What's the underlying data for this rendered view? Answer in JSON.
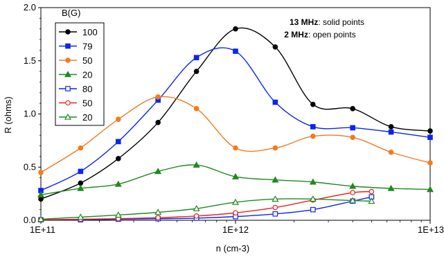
{
  "chart_data": {
    "type": "line",
    "xlabel": "n (cm-3)",
    "ylabel": "R (ohms)",
    "xscale": "log",
    "xlim": [
      100000000000.0,
      10000000000000.0
    ],
    "ylim": [
      0,
      2.0
    ],
    "x_tick_labels": [
      "1E+11",
      "1E+12",
      "1E+13"
    ],
    "y_tick_labels": [
      "0.0",
      "0.5",
      "1.0",
      "1.5",
      "2.0"
    ],
    "y_ticks": [
      0,
      0.5,
      1.0,
      1.5,
      2.0
    ],
    "x_ticks": [
      100000000000.0,
      1000000000000.0,
      10000000000000.0
    ],
    "grid": false,
    "legend": {
      "title": "B(G)",
      "placement": "top-left"
    },
    "annotations": [
      {
        "bold": "13 MHz",
        "rest": ":  solid points"
      },
      {
        "bold": "2 MHz",
        "rest": ":  open points"
      }
    ],
    "series": [
      {
        "name": "100",
        "color": "#000000",
        "marker": "circle-filled",
        "x": [
          100000000000.0,
          160000000000.0,
          250000000000.0,
          400000000000.0,
          630000000000.0,
          1000000000000.0,
          1600000000000.0,
          2500000000000.0,
          4000000000000.0,
          6300000000000.0,
          10000000000000.0
        ],
        "y": [
          0.2,
          0.35,
          0.58,
          0.92,
          1.4,
          1.8,
          1.63,
          1.09,
          1.05,
          0.88,
          0.84
        ]
      },
      {
        "name": "79",
        "color": "#0a24f5",
        "marker": "square-filled",
        "x": [
          100000000000.0,
          160000000000.0,
          250000000000.0,
          400000000000.0,
          630000000000.0,
          1000000000000.0,
          1600000000000.0,
          2500000000000.0,
          4000000000000.0,
          6300000000000.0,
          10000000000000.0
        ],
        "y": [
          0.28,
          0.46,
          0.74,
          1.13,
          1.53,
          1.59,
          1.11,
          0.88,
          0.87,
          0.83,
          0.78
        ]
      },
      {
        "name": "50",
        "color": "#f27b1f",
        "marker": "circle-filled",
        "x": [
          100000000000.0,
          160000000000.0,
          250000000000.0,
          400000000000.0,
          630000000000.0,
          1000000000000.0,
          1600000000000.0,
          2500000000000.0,
          4000000000000.0,
          6300000000000.0,
          10000000000000.0
        ],
        "y": [
          0.45,
          0.68,
          0.95,
          1.16,
          1.05,
          0.68,
          0.68,
          0.79,
          0.78,
          0.64,
          0.54
        ]
      },
      {
        "name": "20",
        "color": "#1e8a1e",
        "marker": "triangle-filled",
        "x": [
          100000000000.0,
          160000000000.0,
          250000000000.0,
          400000000000.0,
          630000000000.0,
          1000000000000.0,
          1600000000000.0,
          2500000000000.0,
          4000000000000.0,
          6300000000000.0,
          10000000000000.0
        ],
        "y": [
          0.24,
          0.3,
          0.34,
          0.46,
          0.52,
          0.41,
          0.38,
          0.36,
          0.32,
          0.3,
          0.29
        ]
      },
      {
        "name": "80",
        "color": "#0a24f5",
        "marker": "square-open",
        "x": [
          100000000000.0,
          160000000000.0,
          250000000000.0,
          400000000000.0,
          630000000000.0,
          1000000000000.0,
          1600000000000.0,
          2500000000000.0,
          4000000000000.0,
          5000000000000.0
        ],
        "y": [
          0.005,
          0.005,
          0.01,
          0.015,
          0.02,
          0.035,
          0.06,
          0.1,
          0.18,
          0.22
        ]
      },
      {
        "name": "50",
        "color": "#e8231f",
        "marker": "circle-open",
        "x": [
          100000000000.0,
          160000000000.0,
          250000000000.0,
          400000000000.0,
          630000000000.0,
          1000000000000.0,
          1600000000000.0,
          2500000000000.0,
          4000000000000.0,
          5000000000000.0
        ],
        "y": [
          0.005,
          0.01,
          0.015,
          0.025,
          0.04,
          0.07,
          0.12,
          0.19,
          0.26,
          0.27
        ]
      },
      {
        "name": "20",
        "color": "#1e8a1e",
        "marker": "triangle-open",
        "x": [
          100000000000.0,
          160000000000.0,
          250000000000.0,
          400000000000.0,
          630000000000.0,
          1000000000000.0,
          1600000000000.0,
          2500000000000.0,
          4000000000000.0,
          5000000000000.0
        ],
        "y": [
          0.01,
          0.03,
          0.05,
          0.075,
          0.11,
          0.17,
          0.2,
          0.2,
          0.185,
          0.18
        ]
      }
    ]
  }
}
